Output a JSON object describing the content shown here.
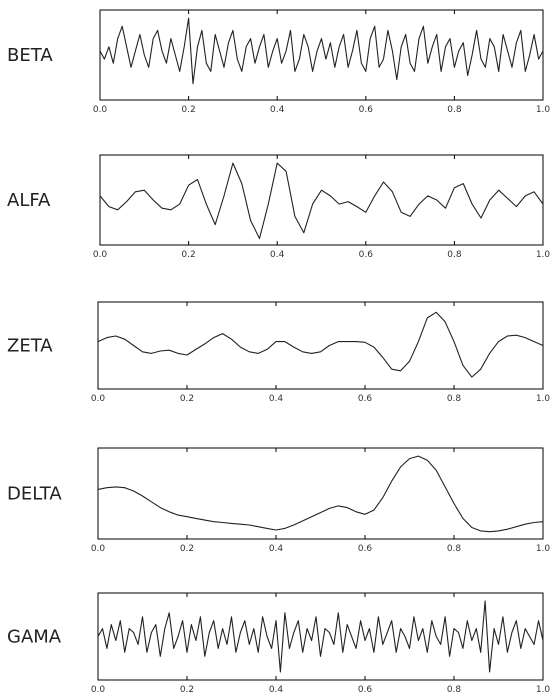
{
  "chart_data": [
    {
      "type": "line",
      "band_label": "BETA",
      "xlim": [
        0,
        1
      ],
      "xticks": [
        "0.0",
        "0.2",
        "0.4",
        "0.6",
        "0.8",
        "1.0"
      ],
      "grid": false,
      "series": [
        {
          "x": [
            0,
            0.01,
            0.02,
            0.03,
            0.04,
            0.05,
            0.06,
            0.07,
            0.08,
            0.09,
            0.1,
            0.11,
            0.12,
            0.13,
            0.14,
            0.15,
            0.16,
            0.17,
            0.18,
            0.19,
            0.2,
            0.21,
            0.22,
            0.23,
            0.24,
            0.25,
            0.26,
            0.27,
            0.28,
            0.29,
            0.3,
            0.31,
            0.32,
            0.33,
            0.34,
            0.35,
            0.36,
            0.37,
            0.38,
            0.39,
            0.4,
            0.41,
            0.42,
            0.43,
            0.44,
            0.45,
            0.46,
            0.47,
            0.48,
            0.49,
            0.5,
            0.51,
            0.52,
            0.53,
            0.54,
            0.55,
            0.56,
            0.57,
            0.58,
            0.59,
            0.6,
            0.61,
            0.62,
            0.63,
            0.64,
            0.65,
            0.66,
            0.67,
            0.68,
            0.69,
            0.7,
            0.71,
            0.72,
            0.73,
            0.74,
            0.75,
            0.76,
            0.77,
            0.78,
            0.79,
            0.8,
            0.81,
            0.82,
            0.83,
            0.84,
            0.85,
            0.86,
            0.87,
            0.88,
            0.89,
            0.9,
            0.91,
            0.92,
            0.93,
            0.94,
            0.95,
            0.96,
            0.97,
            0.98,
            0.99,
            1.0
          ],
          "values": [
            0.55,
            0.45,
            0.6,
            0.4,
            0.7,
            0.85,
            0.6,
            0.35,
            0.55,
            0.75,
            0.5,
            0.35,
            0.7,
            0.8,
            0.55,
            0.4,
            0.7,
            0.5,
            0.3,
            0.6,
            0.95,
            0.15,
            0.6,
            0.8,
            0.4,
            0.3,
            0.75,
            0.55,
            0.35,
            0.65,
            0.8,
            0.45,
            0.3,
            0.6,
            0.7,
            0.4,
            0.6,
            0.75,
            0.35,
            0.55,
            0.7,
            0.4,
            0.55,
            0.8,
            0.3,
            0.45,
            0.75,
            0.6,
            0.3,
            0.55,
            0.7,
            0.45,
            0.65,
            0.35,
            0.6,
            0.75,
            0.35,
            0.55,
            0.8,
            0.4,
            0.3,
            0.7,
            0.85,
            0.35,
            0.45,
            0.8,
            0.55,
            0.2,
            0.6,
            0.75,
            0.4,
            0.3,
            0.7,
            0.85,
            0.4,
            0.6,
            0.75,
            0.3,
            0.6,
            0.7,
            0.35,
            0.55,
            0.65,
            0.25,
            0.5,
            0.8,
            0.45,
            0.35,
            0.7,
            0.6,
            0.3,
            0.75,
            0.55,
            0.35,
            0.65,
            0.8,
            0.3,
            0.5,
            0.75,
            0.45,
            0.55
          ]
        }
      ]
    },
    {
      "type": "line",
      "band_label": "ALFA",
      "xlim": [
        0,
        1
      ],
      "xticks": [
        "0.0",
        "0.2",
        "0.4",
        "0.6",
        "0.8",
        "1.0"
      ],
      "grid": false,
      "series": [
        {
          "x": [
            0,
            0.02,
            0.04,
            0.06,
            0.08,
            0.1,
            0.12,
            0.14,
            0.16,
            0.18,
            0.2,
            0.22,
            0.24,
            0.26,
            0.28,
            0.3,
            0.32,
            0.34,
            0.36,
            0.38,
            0.4,
            0.42,
            0.44,
            0.46,
            0.48,
            0.5,
            0.52,
            0.54,
            0.56,
            0.58,
            0.6,
            0.62,
            0.64,
            0.66,
            0.68,
            0.7,
            0.72,
            0.74,
            0.76,
            0.78,
            0.8,
            0.82,
            0.84,
            0.86,
            0.88,
            0.9,
            0.92,
            0.94,
            0.96,
            0.98,
            1.0
          ],
          "values": [
            0.55,
            0.42,
            0.38,
            0.48,
            0.6,
            0.62,
            0.5,
            0.4,
            0.38,
            0.45,
            0.68,
            0.75,
            0.45,
            0.2,
            0.55,
            0.95,
            0.7,
            0.25,
            0.03,
            0.45,
            0.95,
            0.85,
            0.3,
            0.1,
            0.45,
            0.62,
            0.55,
            0.45,
            0.48,
            0.42,
            0.35,
            0.55,
            0.72,
            0.6,
            0.35,
            0.3,
            0.45,
            0.55,
            0.5,
            0.4,
            0.65,
            0.7,
            0.45,
            0.28,
            0.5,
            0.62,
            0.52,
            0.42,
            0.55,
            0.6,
            0.45
          ]
        }
      ]
    },
    {
      "type": "line",
      "band_label": "ZETA",
      "xlim": [
        0,
        1
      ],
      "xticks": [
        "0.0",
        "0.2",
        "0.4",
        "0.6",
        "0.8",
        "1.0"
      ],
      "grid": false,
      "series": [
        {
          "x": [
            0,
            0.02,
            0.04,
            0.06,
            0.08,
            0.1,
            0.12,
            0.14,
            0.16,
            0.18,
            0.2,
            0.22,
            0.24,
            0.26,
            0.28,
            0.3,
            0.32,
            0.34,
            0.36,
            0.38,
            0.4,
            0.42,
            0.44,
            0.46,
            0.48,
            0.5,
            0.52,
            0.54,
            0.56,
            0.58,
            0.6,
            0.62,
            0.64,
            0.66,
            0.68,
            0.7,
            0.72,
            0.74,
            0.76,
            0.78,
            0.8,
            0.82,
            0.84,
            0.86,
            0.88,
            0.9,
            0.92,
            0.94,
            0.96,
            0.98,
            1.0
          ],
          "values": [
            0.55,
            0.6,
            0.62,
            0.58,
            0.5,
            0.42,
            0.4,
            0.43,
            0.44,
            0.4,
            0.38,
            0.45,
            0.52,
            0.6,
            0.65,
            0.58,
            0.48,
            0.42,
            0.4,
            0.45,
            0.55,
            0.55,
            0.48,
            0.42,
            0.4,
            0.42,
            0.5,
            0.55,
            0.55,
            0.55,
            0.54,
            0.48,
            0.35,
            0.2,
            0.18,
            0.3,
            0.55,
            0.85,
            0.92,
            0.8,
            0.55,
            0.25,
            0.1,
            0.2,
            0.4,
            0.55,
            0.62,
            0.63,
            0.6,
            0.55,
            0.5
          ]
        }
      ]
    },
    {
      "type": "line",
      "band_label": "DELTA",
      "xlim": [
        0,
        1
      ],
      "xticks": [
        "0.0",
        "0.2",
        "0.4",
        "0.6",
        "0.8",
        "1.0"
      ],
      "grid": false,
      "series": [
        {
          "x": [
            0,
            0.02,
            0.04,
            0.06,
            0.08,
            0.1,
            0.12,
            0.14,
            0.16,
            0.18,
            0.2,
            0.22,
            0.24,
            0.26,
            0.28,
            0.3,
            0.32,
            0.34,
            0.36,
            0.38,
            0.4,
            0.42,
            0.44,
            0.46,
            0.48,
            0.5,
            0.52,
            0.54,
            0.56,
            0.58,
            0.6,
            0.62,
            0.64,
            0.66,
            0.68,
            0.7,
            0.72,
            0.74,
            0.76,
            0.78,
            0.8,
            0.82,
            0.84,
            0.86,
            0.88,
            0.9,
            0.92,
            0.94,
            0.96,
            0.98,
            1.0
          ],
          "values": [
            0.55,
            0.57,
            0.58,
            0.57,
            0.53,
            0.47,
            0.4,
            0.33,
            0.28,
            0.24,
            0.22,
            0.2,
            0.18,
            0.16,
            0.15,
            0.14,
            0.13,
            0.12,
            0.1,
            0.08,
            0.06,
            0.08,
            0.12,
            0.17,
            0.22,
            0.27,
            0.32,
            0.35,
            0.33,
            0.28,
            0.25,
            0.3,
            0.45,
            0.65,
            0.82,
            0.92,
            0.95,
            0.9,
            0.78,
            0.58,
            0.38,
            0.2,
            0.09,
            0.05,
            0.04,
            0.05,
            0.07,
            0.1,
            0.13,
            0.15,
            0.16
          ]
        }
      ]
    },
    {
      "type": "line",
      "band_label": "GAMA",
      "xlim": [
        0,
        1
      ],
      "xticks": [
        "0.0",
        "0.2",
        "0.4",
        "0.6",
        "0.8",
        "1.0"
      ],
      "grid": false,
      "series": [
        {
          "x": [
            0,
            0.01,
            0.02,
            0.03,
            0.04,
            0.05,
            0.06,
            0.07,
            0.08,
            0.09,
            0.1,
            0.11,
            0.12,
            0.13,
            0.14,
            0.15,
            0.16,
            0.17,
            0.18,
            0.19,
            0.2,
            0.21,
            0.22,
            0.23,
            0.24,
            0.25,
            0.26,
            0.27,
            0.28,
            0.29,
            0.3,
            0.31,
            0.32,
            0.33,
            0.34,
            0.35,
            0.36,
            0.37,
            0.38,
            0.39,
            0.4,
            0.41,
            0.42,
            0.43,
            0.44,
            0.45,
            0.46,
            0.47,
            0.48,
            0.49,
            0.5,
            0.51,
            0.52,
            0.53,
            0.54,
            0.55,
            0.56,
            0.57,
            0.58,
            0.59,
            0.6,
            0.61,
            0.62,
            0.63,
            0.64,
            0.65,
            0.66,
            0.67,
            0.68,
            0.69,
            0.7,
            0.71,
            0.72,
            0.73,
            0.74,
            0.75,
            0.76,
            0.77,
            0.78,
            0.79,
            0.8,
            0.81,
            0.82,
            0.83,
            0.84,
            0.85,
            0.86,
            0.87,
            0.88,
            0.89,
            0.9,
            0.91,
            0.92,
            0.93,
            0.94,
            0.95,
            0.96,
            0.97,
            0.98,
            0.99,
            1.0
          ],
          "values": [
            0.5,
            0.6,
            0.35,
            0.65,
            0.45,
            0.7,
            0.3,
            0.6,
            0.55,
            0.4,
            0.75,
            0.3,
            0.55,
            0.65,
            0.25,
            0.6,
            0.8,
            0.35,
            0.5,
            0.7,
            0.3,
            0.65,
            0.45,
            0.75,
            0.25,
            0.55,
            0.7,
            0.35,
            0.6,
            0.4,
            0.75,
            0.3,
            0.55,
            0.7,
            0.4,
            0.6,
            0.3,
            0.75,
            0.5,
            0.35,
            0.7,
            0.05,
            0.8,
            0.35,
            0.55,
            0.7,
            0.3,
            0.6,
            0.45,
            0.75,
            0.25,
            0.6,
            0.55,
            0.4,
            0.8,
            0.3,
            0.65,
            0.5,
            0.35,
            0.7,
            0.45,
            0.6,
            0.3,
            0.75,
            0.4,
            0.55,
            0.7,
            0.3,
            0.6,
            0.5,
            0.35,
            0.75,
            0.45,
            0.6,
            0.3,
            0.7,
            0.5,
            0.4,
            0.75,
            0.25,
            0.6,
            0.55,
            0.35,
            0.7,
            0.45,
            0.6,
            0.3,
            0.95,
            0.05,
            0.6,
            0.4,
            0.75,
            0.3,
            0.55,
            0.7,
            0.35,
            0.6,
            0.5,
            0.4,
            0.7,
            0.45
          ]
        }
      ]
    }
  ]
}
